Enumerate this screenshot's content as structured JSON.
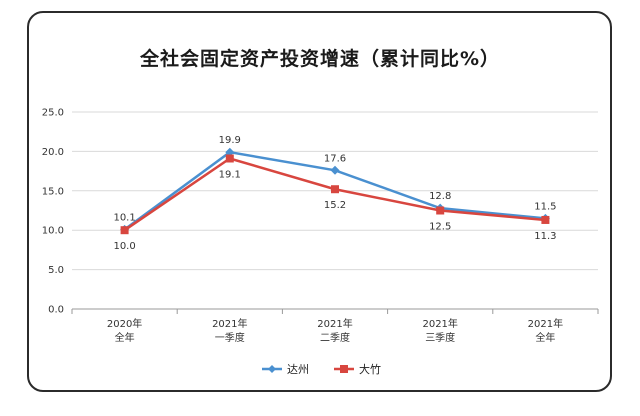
{
  "chart_data": {
    "type": "line",
    "title": "全社会固定资产投资增速（累计同比%）",
    "categories": [
      [
        "2020年",
        "全年"
      ],
      [
        "2021年",
        "一季度"
      ],
      [
        "2021年",
        "二季度"
      ],
      [
        "2021年",
        "三季度"
      ],
      [
        "2021年",
        "全年"
      ]
    ],
    "series": [
      {
        "name": "达州",
        "color": "#4a90d0",
        "marker": "diamond",
        "values": [
          10.1,
          19.9,
          17.6,
          12.8,
          11.5
        ],
        "labels": [
          "10.1",
          "19.9",
          "17.6",
          "12.8",
          "11.5"
        ],
        "label_position": "above"
      },
      {
        "name": "大竹",
        "color": "#d8463f",
        "marker": "square",
        "values": [
          10.0,
          19.1,
          15.2,
          12.5,
          11.3
        ],
        "labels": [
          "10.0",
          "19.1",
          "15.2",
          "12.5",
          "11.3"
        ],
        "label_position": "below"
      }
    ],
    "ylim": [
      0,
      25
    ],
    "yticks": [
      "0.0",
      "5.0",
      "10.0",
      "15.0",
      "20.0",
      "25.0"
    ],
    "grid": true,
    "legend": "bottom-center"
  }
}
